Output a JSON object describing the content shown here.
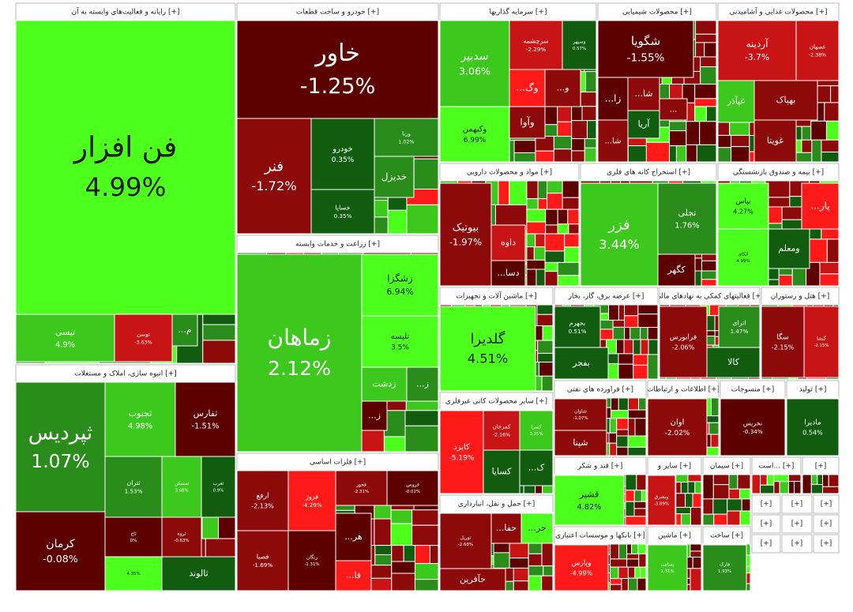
{
  "sectors": [
    {
      "title": "رایانه و فعالیت‌های وابسته به آن [+]",
      "tiles": [
        {
          "name": "فن افزار",
          "change": "4.99%"
        },
        {
          "name": "تیسی",
          "change": "4.9%"
        },
        {
          "name": "توسن",
          "change": "-3.63%"
        },
        {
          "name": "...م"
        }
      ]
    },
    {
      "title": "خودرو و ساخت قطعات [+]",
      "tiles": [
        {
          "name": "خاور",
          "change": "-1.25%"
        },
        {
          "name": "فنر",
          "change": "-1.72%"
        },
        {
          "name": "خودرو",
          "change": "0.35%"
        },
        {
          "name": "خساپا",
          "change": "0.35%"
        },
        {
          "name": "ورنا",
          "change": "1.02%"
        },
        {
          "name": "خدیزل"
        }
      ]
    },
    {
      "title": "زراعت و خدمات وابسته [+]",
      "tiles": [
        {
          "name": "زماهان",
          "change": "2.12%"
        },
        {
          "name": "زشگزا",
          "change": "6.94%"
        },
        {
          "name": "تلیسه",
          "change": "3.5%"
        },
        {
          "name": "زدشت"
        },
        {
          "name": "...ز"
        },
        {
          "name": "...ز"
        }
      ]
    },
    {
      "title": "سرمایه گذاریها [+]",
      "tiles": [
        {
          "name": "سدبیر",
          "change": "3.06%"
        },
        {
          "name": "وکبهمن",
          "change": "6.99%"
        },
        {
          "name": "سرچشمه",
          "change": "-2.29%"
        },
        {
          "name": "وسپهر",
          "change": "0.57%"
        },
        {
          "name": "...وگ"
        },
        {
          "name": "...و"
        },
        {
          "name": "وآوا"
        }
      ]
    },
    {
      "title": "محصولات شیمیایی [+]",
      "tiles": [
        {
          "name": "شگویا",
          "change": "-1.55%"
        },
        {
          "name": "...زا"
        },
        {
          "name": "...شا"
        },
        {
          "name": "آریا"
        },
        {
          "name": "...شا"
        },
        {
          "name": "..."
        }
      ]
    },
    {
      "title": "محصولات غذایی و آشامیدنی [+]",
      "tiles": [
        {
          "name": "آردینه",
          "change": "-3.7%"
        },
        {
          "name": "غصهان",
          "change": "-2.38%"
        },
        {
          "name": "غپآذر"
        },
        {
          "name": "بهپاک"
        },
        {
          "name": "غویتا"
        }
      ]
    },
    {
      "title": "مواد و محصولات دارویی [+]",
      "tiles": [
        {
          "name": "بیوتیک",
          "change": "-1.97%"
        },
        {
          "name": "داوه"
        },
        {
          "name": "...دسا"
        }
      ]
    },
    {
      "title": "استخراج کانه های فلزی [+]",
      "tiles": [
        {
          "name": "فزر",
          "change": "3.44%"
        },
        {
          "name": "تجلی",
          "change": "1.76%"
        },
        {
          "name": "کگهر"
        }
      ]
    },
    {
      "title": "بیمه و صندوق بازنشستگی [+]",
      "tiles": [
        {
          "name": "بپاس",
          "change": "4.27%"
        },
        {
          "name": "...پار"
        },
        {
          "name": "ومعلم"
        },
        {
          "name": "اتکای",
          "change": "4.99%"
        }
      ]
    },
    {
      "title": "ماشین آلات و تجهیزات [+]",
      "tiles": [
        {
          "name": "گلدیرا",
          "change": "4.51%"
        }
      ]
    },
    {
      "title": "عرضه برق، گاز، بخار [+]",
      "tiles": [
        {
          "name": "بجهرم",
          "change": "0.51%"
        },
        {
          "name": "بفجر"
        }
      ]
    },
    {
      "title": "فعالیتهای کمکی به نهادهای مالی [+]",
      "tiles": [
        {
          "name": "فرابورس",
          "change": "-2.06%"
        },
        {
          "name": "اترای",
          "change": "1.47%"
        },
        {
          "name": "کالا"
        }
      ]
    },
    {
      "title": "هتل و رستوران [+]",
      "tiles": [
        {
          "name": "سگا",
          "change": "-2.15%"
        },
        {
          "name": "گنشا",
          "change": "-2.15%"
        }
      ]
    },
    {
      "title": "سایر محصولات کانی غیرفلزی [+]",
      "tiles": [
        {
          "name": "کایزد",
          "change": "-5.19%"
        },
        {
          "name": "کمرجان",
          "change": "-2.16%"
        },
        {
          "name": "کسرا",
          "change": "3.25%"
        },
        {
          "name": "کسایا"
        },
        {
          "name": "...ک"
        }
      ]
    },
    {
      "title": "فراورده های نفتی [+]",
      "tiles": [
        {
          "name": "شاوان",
          "change": "-1.07%"
        },
        {
          "name": "شپنا"
        }
      ]
    },
    {
      "title": "اطلاعات و ارتباطات [+]",
      "tiles": [
        {
          "name": "اوان",
          "change": "-2.02%"
        }
      ]
    },
    {
      "title": "منسوجات [+]",
      "tiles": [
        {
          "name": "نخریس",
          "change": "-0.34%"
        }
      ]
    },
    {
      "title": "تولید [+]",
      "tiles": [
        {
          "name": "ماديرا",
          "change": "0.54%"
        }
      ]
    },
    {
      "title": "انبوه سازی، املاک و مستغلات [+]",
      "tiles": [
        {
          "name": "ثپردیس",
          "change": "1.07%"
        },
        {
          "name": "کرمان",
          "change": "-0.08%"
        },
        {
          "name": "ثجنوب",
          "change": "4.98%"
        },
        {
          "name": "ثفارس",
          "change": "-1.51%"
        },
        {
          "name": "ثتران",
          "change": "1.53%"
        },
        {
          "name": "ثمسکن",
          "change": "3.68%"
        },
        {
          "name": "ثغرب",
          "change": "0.9%"
        },
        {
          "name": "ثاخ",
          "change": "0%"
        },
        {
          "name": "ثروه",
          "change": "-0.63%"
        },
        {
          "change": "4.35%"
        },
        {
          "name": "ثالوند"
        }
      ]
    },
    {
      "title": "فلزات اساسی [+]",
      "tiles": [
        {
          "name": "ارفع",
          "change": "-2.13%"
        },
        {
          "name": "فروژ",
          "change": "-4.29%"
        },
        {
          "name": "فخوز",
          "change": "-2.31%"
        },
        {
          "name": "فروس",
          "change": "-0.02%"
        },
        {
          "name": "فصبا",
          "change": "-1.69%"
        },
        {
          "name": "زنگان",
          "change": "-1.31%"
        },
        {
          "name": "...هر"
        },
        {
          "name": "...فا"
        }
      ]
    },
    {
      "title": "حمل و نقل، انبارداری [+]",
      "tiles": [
        {
          "name": "توریل",
          "change": "-2.68%"
        },
        {
          "name": "...حفا"
        },
        {
          "name": "...حر"
        },
        {
          "name": "حآفرین"
        }
      ]
    },
    {
      "title": "قند و شکر [+]",
      "tiles": [
        {
          "name": "قشیر",
          "change": "4.82%"
        }
      ]
    },
    {
      "title": "بانکها و موسسات اعتباری [+]",
      "tiles": [
        {
          "name": "وپارس",
          "change": "-4.99%"
        }
      ]
    },
    {
      "title": "سایر و [+]",
      "tiles": [
        {
          "name": "وبشرق",
          "change": "-3.89%"
        }
      ]
    },
    {
      "title": "ماشین [+]",
      "tiles": [
        {
          "name": "بسامی",
          "change": "1.31%"
        }
      ]
    },
    {
      "title": "سیمان [+]",
      "tiles": []
    },
    {
      "title": "ساخت [+]",
      "tiles": [
        {
          "name": "فارک",
          "change": "1.93%"
        }
      ]
    },
    {
      "title": "است... [+]",
      "tiles": []
    },
    {
      "title": "[+]",
      "tiles": []
    },
    {
      "title": "[+]",
      "tiles": []
    },
    {
      "title": "[+]",
      "tiles": []
    },
    {
      "title": "[+]",
      "tiles": []
    },
    {
      "title": "[+]",
      "tiles": []
    },
    {
      "title": "[+]",
      "tiles": []
    },
    {
      "title": "[+]",
      "tiles": []
    },
    {
      "title": "[+]",
      "tiles": []
    },
    {
      "title": "[+]",
      "tiles": []
    },
    {
      "title": "[+]",
      "tiles": []
    }
  ]
}
